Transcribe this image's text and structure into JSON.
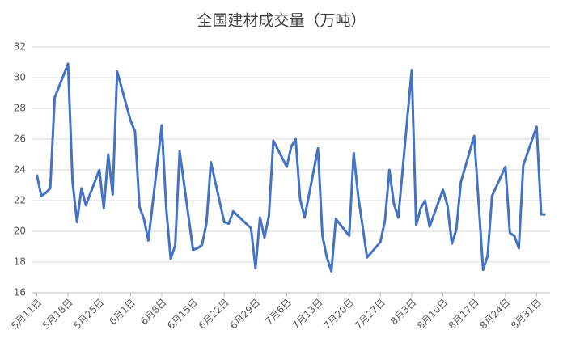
{
  "chart_data": {
    "type": "line",
    "title": "全国建材成交量（万吨）",
    "x": [
      "5月11日",
      "5月12日",
      "5月13日",
      "5月14日",
      "5月15日",
      "5月18日",
      "5月19日",
      "5月20日",
      "5月21日",
      "5月22日",
      "5月25日",
      "5月26日",
      "5月27日",
      "5月28日",
      "5月29日",
      "6月1日",
      "6月2日",
      "6月3日",
      "6月4日",
      "6月5日",
      "6月8日",
      "6月9日",
      "6月10日",
      "6月11日",
      "6月12日",
      "6月15日",
      "6月16日",
      "6月17日",
      "6月18日",
      "6月19日",
      "6月22日",
      "6月23日",
      "6月24日",
      "6月28日",
      "6月29日",
      "6月30日",
      "7月1日",
      "7月2日",
      "7月3日",
      "7月6日",
      "7月7日",
      "7月8日",
      "7月9日",
      "7月10日",
      "7月13日",
      "7月14日",
      "7月15日",
      "7月16日",
      "7月17日",
      "7月20日",
      "7月21日",
      "7月22日",
      "7月24日",
      "7月27日",
      "7月28日",
      "7月29日",
      "7月30日",
      "7月31日",
      "8月3日",
      "8月4日",
      "8月5日",
      "8月6日",
      "8月7日",
      "8月10日",
      "8月11日",
      "8月12日",
      "8月13日",
      "8月14日",
      "8月17日",
      "8月19日",
      "8月20日",
      "8月21日",
      "8月24日",
      "8月25日",
      "8月26日",
      "8月27日",
      "8月28日",
      "8月31日",
      "9月1日",
      "9月2日"
    ],
    "series": [
      {
        "color": "#4472c4",
        "values": [
          23.7,
          22.3,
          22.5,
          22.8,
          28.7,
          30.9,
          23.2,
          20.6,
          22.8,
          21.7,
          24.0,
          21.5,
          25.0,
          22.4,
          30.4,
          27.2,
          26.5,
          21.6,
          20.8,
          19.4,
          26.9,
          21.5,
          18.2,
          19.1,
          25.2,
          18.8,
          18.9,
          19.1,
          20.5,
          24.5,
          20.6,
          20.5,
          21.3,
          20.2,
          17.6,
          20.9,
          19.6,
          21.0,
          25.9,
          24.2,
          25.5,
          26.0,
          22.1,
          20.9,
          25.4,
          19.7,
          18.3,
          17.4,
          20.8,
          19.7,
          25.1,
          22.3,
          18.3,
          19.3,
          20.7,
          24.0,
          21.8,
          20.9,
          30.5,
          20.4,
          21.5,
          22.0,
          20.3,
          22.7,
          21.7,
          19.2,
          20.1,
          23.2,
          26.2,
          17.5,
          18.4,
          22.3,
          24.2,
          19.9,
          19.7,
          18.9,
          24.3,
          26.8,
          21.1,
          21.1
        ]
      }
    ],
    "xlim": [
      "5月10日",
      "9月3日"
    ],
    "xticks": [
      "5月11日",
      "5月18日",
      "5月25日",
      "6月1日",
      "6月8日",
      "6月15日",
      "6月22日",
      "6月29日",
      "7月6日",
      "7月13日",
      "7月20日",
      "7月27日",
      "8月3日",
      "8月10日",
      "8月17日",
      "8月24日",
      "8月31日"
    ],
    "ylim": [
      16,
      32
    ],
    "yticks": [
      16,
      18,
      20,
      22,
      24,
      26,
      28,
      30,
      32
    ],
    "grid": true
  }
}
